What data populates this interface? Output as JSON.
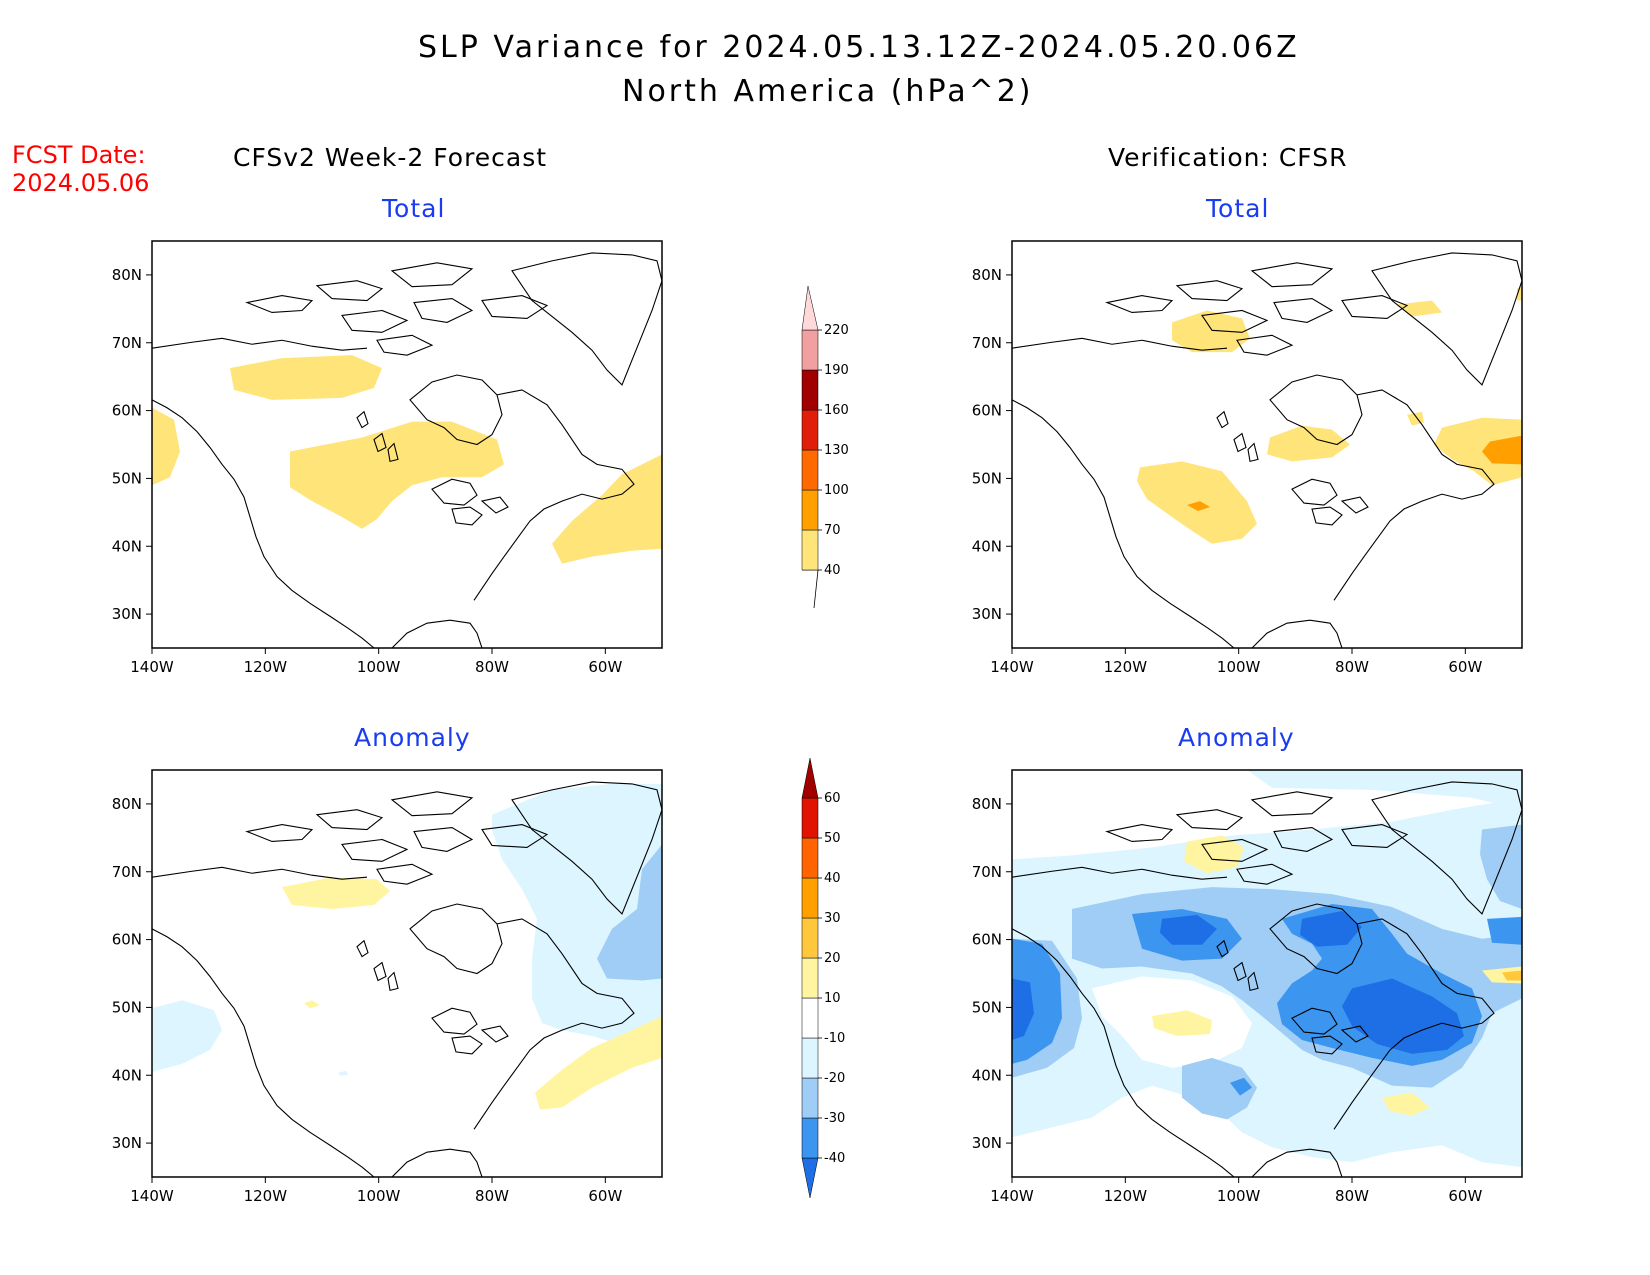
{
  "title": {
    "line1": "SLP Variance for 2024.05.13.12Z-2024.05.20.06Z",
    "line2": "North America (hPa^2)"
  },
  "fcst_date": {
    "label": "FCST Date:",
    "value": "2024.05.06"
  },
  "columns": {
    "left": "CFSv2 Week-2 Forecast",
    "right": "Verification: CFSR"
  },
  "panel_titles": {
    "forecast_total": "Total",
    "forecast_anomaly": "Anomaly",
    "verification_total": "Total",
    "verification_anomaly": "Anomaly"
  },
  "axes": {
    "lat_labels": [
      "80N",
      "70N",
      "60N",
      "50N",
      "40N",
      "30N"
    ],
    "lat_values": [
      80,
      70,
      60,
      50,
      40,
      30
    ],
    "lon_labels": [
      "140W",
      "120W",
      "100W",
      "80W",
      "60W"
    ],
    "lon_values": [
      -140,
      -120,
      -100,
      -80,
      -60
    ],
    "lon_range": [
      -140,
      -50
    ],
    "lat_range": [
      25,
      85
    ]
  },
  "colorbars": {
    "total": {
      "levels": [
        40,
        70,
        100,
        130,
        160,
        190,
        220
      ],
      "labels": [
        "40",
        "70",
        "100",
        "130",
        "160",
        "190",
        "220"
      ],
      "colors": [
        "#ffe47a",
        "#ff9f00",
        "#ff6a00",
        "#e01e0a",
        "#a00000",
        "#f0a0a0",
        "#ffd9d9"
      ]
    },
    "anomaly": {
      "levels": [
        -40,
        -30,
        -20,
        -10,
        10,
        20,
        30,
        40,
        50,
        60
      ],
      "labels": [
        "-40",
        "-30",
        "-20",
        "-10",
        "10",
        "20",
        "30",
        "40",
        "50",
        "60"
      ],
      "colors": [
        "#1e6fe6",
        "#3c96f0",
        "#a0cdf5",
        "#dcf5ff",
        "#ffffff",
        "#fff5a0",
        "#ffc83c",
        "#ffa000",
        "#ff6400",
        "#e01400",
        "#a00000"
      ]
    }
  },
  "colors": {
    "total_40_70": "#ffe47a",
    "total_70_100": "#ff9f00",
    "anom_pos_10_20": "#fff5a0",
    "anom_pos_20_30": "#ffc83c",
    "anom_neg_10_20": "#dcf5ff",
    "anom_neg_20_30": "#a0cdf5",
    "anom_neg_30_40": "#3c96f0",
    "anom_neg_40": "#1e6fe6"
  }
}
